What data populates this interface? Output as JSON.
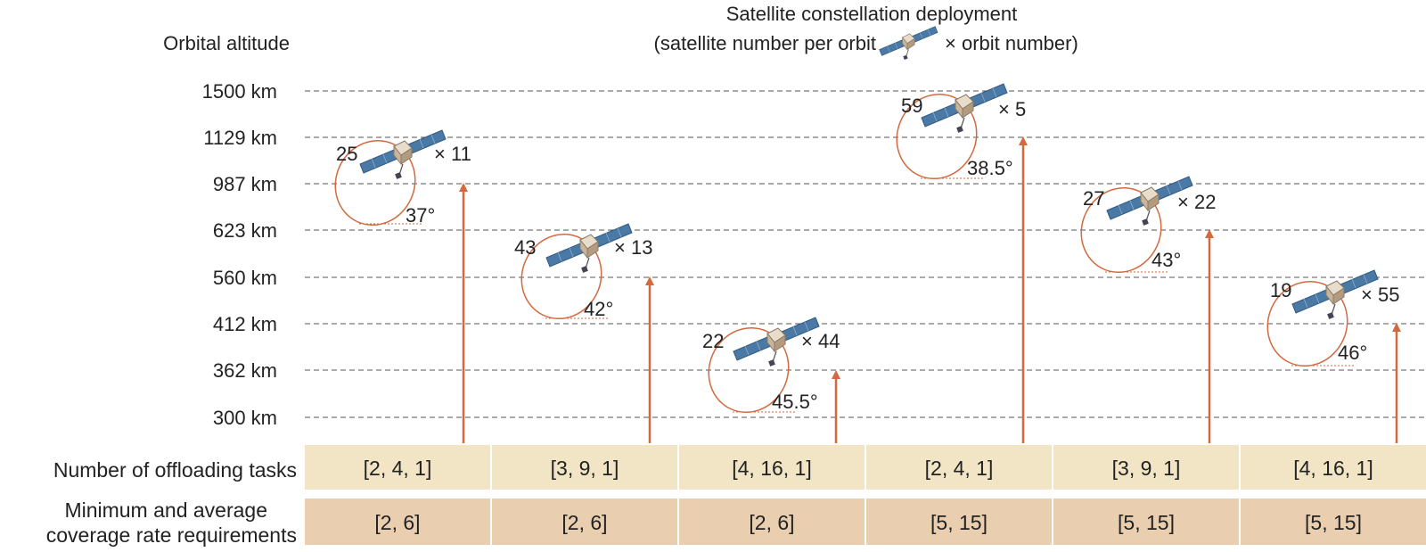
{
  "title_line1": "Satellite constellation deployment",
  "title_line2_a": "(satellite number per orbit",
  "title_line2_b": "× orbit number)",
  "y_axis_label": "Orbital altitude",
  "altitudes": [
    "1500 km",
    "1129 km",
    "987 km",
    "623 km",
    "560 km",
    "412 km",
    "362 km",
    "300 km"
  ],
  "constellations": [
    {
      "sats_per_orbit": "25",
      "orbits": "× 11",
      "inclination": "37°",
      "altitude": "987 km"
    },
    {
      "sats_per_orbit": "43",
      "orbits": "× 13",
      "inclination": "42°",
      "altitude": "560 km"
    },
    {
      "sats_per_orbit": "22",
      "orbits": "× 44",
      "inclination": "45.5°",
      "altitude": "362 km"
    },
    {
      "sats_per_orbit": "59",
      "orbits": "× 5",
      "inclination": "38.5°",
      "altitude": "1129 km"
    },
    {
      "sats_per_orbit": "27",
      "orbits": "× 22",
      "inclination": "43°",
      "altitude": "623 km"
    },
    {
      "sats_per_orbit": "19",
      "orbits": "× 55",
      "inclination": "46°",
      "altitude": "412 km"
    }
  ],
  "row1": {
    "label": "Number of offloading tasks",
    "values": [
      "[2, 4, 1]",
      "[3, 9, 1]",
      "[4, 16, 1]",
      "[2, 4, 1]",
      "[3, 9, 1]",
      "[4, 16, 1]"
    ]
  },
  "row2": {
    "label_line1": "Minimum and average",
    "label_line2": "coverage rate requirements",
    "values": [
      "[2, 6]",
      "[2, 6]",
      "[2, 6]",
      "[5, 15]",
      "[5, 15]",
      "[5, 15]"
    ]
  },
  "colors": {
    "arrow": "#d2693f",
    "orbit": "#d2693f",
    "row1_fill": "#f1e5c5",
    "row2_fill": "#e9cfb0",
    "grid": "#555555",
    "panel": "#4a79a5"
  }
}
